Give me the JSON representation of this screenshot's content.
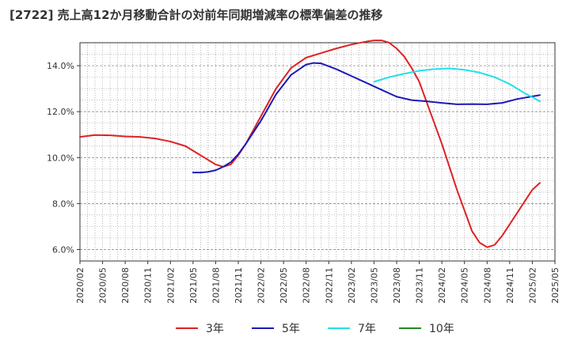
{
  "chart_data": {
    "type": "line",
    "title": "[2722]  売上高12か月移動合計の対前年同期増減率の標準偏差の推移",
    "xlabel": "",
    "ylabel": "",
    "ylim": [
      5.5,
      15.0
    ],
    "yticks": [
      6.0,
      8.0,
      10.0,
      12.0,
      14.0
    ],
    "ytick_labels": [
      "6.0%",
      "8.0%",
      "10.0%",
      "12.0%",
      "14.0%"
    ],
    "xticks": [
      "2020/02",
      "2020/05",
      "2020/08",
      "2020/11",
      "2021/02",
      "2021/05",
      "2021/08",
      "2021/11",
      "2022/02",
      "2022/05",
      "2022/08",
      "2022/11",
      "2023/02",
      "2023/05",
      "2023/08",
      "2023/11",
      "2024/02",
      "2024/05",
      "2024/08",
      "2024/11",
      "2025/02",
      "2025/05"
    ],
    "grid": true,
    "legend_position": "bottom",
    "series": [
      {
        "name": "3年",
        "color": "#dd2222",
        "points": [
          [
            "2020/02",
            10.9
          ],
          [
            "2020/04",
            10.98
          ],
          [
            "2020/06",
            10.97
          ],
          [
            "2020/08",
            10.92
          ],
          [
            "2020/10",
            10.9
          ],
          [
            "2020/12",
            10.83
          ],
          [
            "2021/02",
            10.7
          ],
          [
            "2021/04",
            10.5
          ],
          [
            "2021/06",
            10.1
          ],
          [
            "2021/08",
            9.7
          ],
          [
            "2021/09",
            9.6
          ],
          [
            "2021/10",
            9.7
          ],
          [
            "2021/11",
            10.1
          ],
          [
            "2021/12",
            10.6
          ],
          [
            "2022/02",
            11.8
          ],
          [
            "2022/04",
            13.0
          ],
          [
            "2022/06",
            13.9
          ],
          [
            "2022/08",
            14.35
          ],
          [
            "2022/10",
            14.55
          ],
          [
            "2022/12",
            14.75
          ],
          [
            "2023/02",
            14.92
          ],
          [
            "2023/04",
            15.05
          ],
          [
            "2023/05",
            15.1
          ],
          [
            "2023/06",
            15.1
          ],
          [
            "2023/07",
            15.0
          ],
          [
            "2023/08",
            14.75
          ],
          [
            "2023/09",
            14.4
          ],
          [
            "2023/10",
            13.9
          ],
          [
            "2023/11",
            13.3
          ],
          [
            "2023/12",
            12.4
          ],
          [
            "2024/02",
            10.6
          ],
          [
            "2024/04",
            8.6
          ],
          [
            "2024/06",
            6.8
          ],
          [
            "2024/07",
            6.3
          ],
          [
            "2024/08",
            6.1
          ],
          [
            "2024/09",
            6.2
          ],
          [
            "2024/10",
            6.6
          ],
          [
            "2024/12",
            7.6
          ],
          [
            "2025/01",
            8.1
          ],
          [
            "2025/02",
            8.6
          ],
          [
            "2025/03",
            8.9
          ]
        ]
      },
      {
        "name": "5年",
        "color": "#1a1ab8",
        "points": [
          [
            "2021/05",
            9.35
          ],
          [
            "2021/06",
            9.35
          ],
          [
            "2021/07",
            9.38
          ],
          [
            "2021/08",
            9.45
          ],
          [
            "2021/09",
            9.6
          ],
          [
            "2021/10",
            9.8
          ],
          [
            "2021/11",
            10.15
          ],
          [
            "2021/12",
            10.6
          ],
          [
            "2022/02",
            11.6
          ],
          [
            "2022/04",
            12.75
          ],
          [
            "2022/06",
            13.6
          ],
          [
            "2022/08",
            14.05
          ],
          [
            "2022/09",
            14.12
          ],
          [
            "2022/10",
            14.1
          ],
          [
            "2022/12",
            13.85
          ],
          [
            "2023/02",
            13.55
          ],
          [
            "2023/04",
            13.25
          ],
          [
            "2023/06",
            12.95
          ],
          [
            "2023/08",
            12.65
          ],
          [
            "2023/10",
            12.5
          ],
          [
            "2023/12",
            12.45
          ],
          [
            "2024/02",
            12.38
          ],
          [
            "2024/04",
            12.32
          ],
          [
            "2024/06",
            12.33
          ],
          [
            "2024/08",
            12.32
          ],
          [
            "2024/10",
            12.38
          ],
          [
            "2024/12",
            12.55
          ],
          [
            "2025/03",
            12.72
          ]
        ]
      },
      {
        "name": "7年",
        "color": "#22e0e8",
        "points": [
          [
            "2023/05",
            13.3
          ],
          [
            "2023/07",
            13.5
          ],
          [
            "2023/09",
            13.65
          ],
          [
            "2023/11",
            13.78
          ],
          [
            "2024/01",
            13.85
          ],
          [
            "2024/03",
            13.88
          ],
          [
            "2024/05",
            13.82
          ],
          [
            "2024/07",
            13.7
          ],
          [
            "2024/09",
            13.5
          ],
          [
            "2024/11",
            13.2
          ],
          [
            "2025/01",
            12.8
          ],
          [
            "2025/03",
            12.45
          ]
        ]
      },
      {
        "name": "10年",
        "color": "#228822",
        "points": []
      }
    ]
  }
}
